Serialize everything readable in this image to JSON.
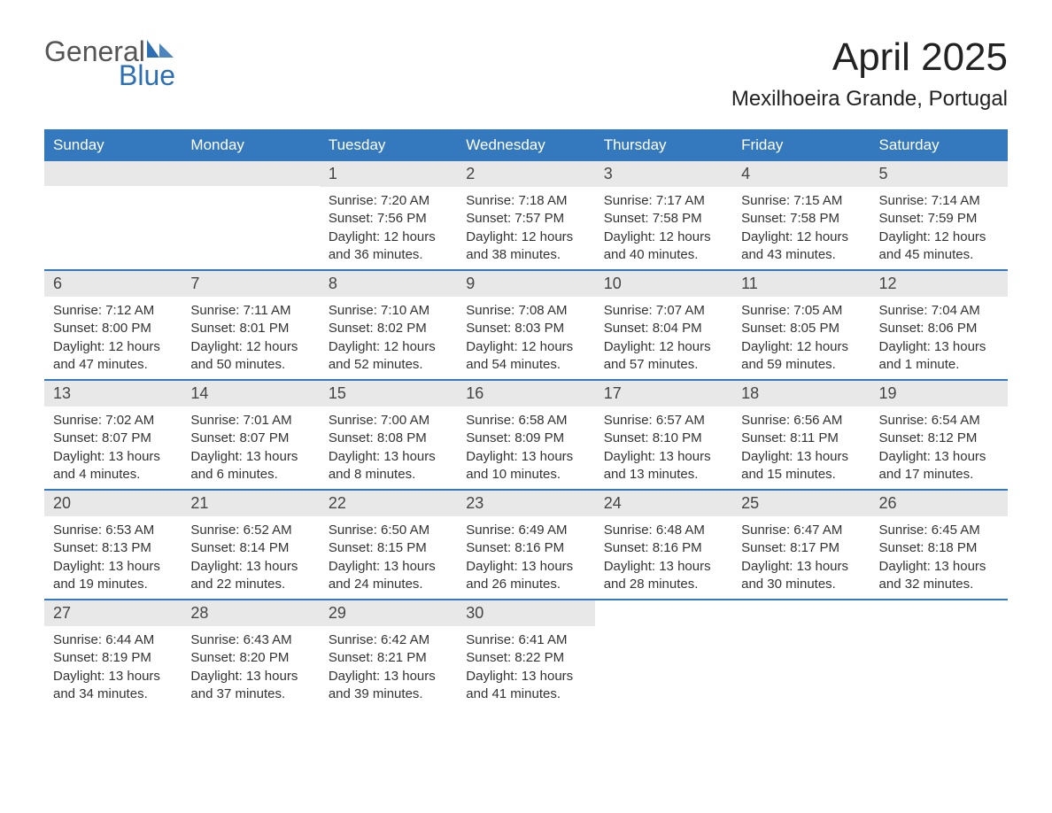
{
  "logo": {
    "text_general": "General",
    "text_blue": "Blue",
    "icon_color": "#2d6fb3"
  },
  "header": {
    "month_title": "April 2025",
    "location": "Mexilhoeira Grande, Portugal"
  },
  "colors": {
    "header_bg": "#3478bd",
    "header_text": "#ffffff",
    "day_number_bg": "#e8e8e8",
    "border_color": "#3478bd",
    "text_color": "#333333",
    "logo_gray": "#555555",
    "logo_blue": "#2d6fb3"
  },
  "typography": {
    "month_title_fontsize": 44,
    "location_fontsize": 24,
    "weekday_fontsize": 17,
    "daynum_fontsize": 18,
    "content_fontsize": 15
  },
  "weekdays": [
    "Sunday",
    "Monday",
    "Tuesday",
    "Wednesday",
    "Thursday",
    "Friday",
    "Saturday"
  ],
  "weeks": [
    [
      {
        "empty": true
      },
      {
        "empty": true
      },
      {
        "day": "1",
        "sunrise": "Sunrise: 7:20 AM",
        "sunset": "Sunset: 7:56 PM",
        "daylight1": "Daylight: 12 hours",
        "daylight2": "and 36 minutes."
      },
      {
        "day": "2",
        "sunrise": "Sunrise: 7:18 AM",
        "sunset": "Sunset: 7:57 PM",
        "daylight1": "Daylight: 12 hours",
        "daylight2": "and 38 minutes."
      },
      {
        "day": "3",
        "sunrise": "Sunrise: 7:17 AM",
        "sunset": "Sunset: 7:58 PM",
        "daylight1": "Daylight: 12 hours",
        "daylight2": "and 40 minutes."
      },
      {
        "day": "4",
        "sunrise": "Sunrise: 7:15 AM",
        "sunset": "Sunset: 7:58 PM",
        "daylight1": "Daylight: 12 hours",
        "daylight2": "and 43 minutes."
      },
      {
        "day": "5",
        "sunrise": "Sunrise: 7:14 AM",
        "sunset": "Sunset: 7:59 PM",
        "daylight1": "Daylight: 12 hours",
        "daylight2": "and 45 minutes."
      }
    ],
    [
      {
        "day": "6",
        "sunrise": "Sunrise: 7:12 AM",
        "sunset": "Sunset: 8:00 PM",
        "daylight1": "Daylight: 12 hours",
        "daylight2": "and 47 minutes."
      },
      {
        "day": "7",
        "sunrise": "Sunrise: 7:11 AM",
        "sunset": "Sunset: 8:01 PM",
        "daylight1": "Daylight: 12 hours",
        "daylight2": "and 50 minutes."
      },
      {
        "day": "8",
        "sunrise": "Sunrise: 7:10 AM",
        "sunset": "Sunset: 8:02 PM",
        "daylight1": "Daylight: 12 hours",
        "daylight2": "and 52 minutes."
      },
      {
        "day": "9",
        "sunrise": "Sunrise: 7:08 AM",
        "sunset": "Sunset: 8:03 PM",
        "daylight1": "Daylight: 12 hours",
        "daylight2": "and 54 minutes."
      },
      {
        "day": "10",
        "sunrise": "Sunrise: 7:07 AM",
        "sunset": "Sunset: 8:04 PM",
        "daylight1": "Daylight: 12 hours",
        "daylight2": "and 57 minutes."
      },
      {
        "day": "11",
        "sunrise": "Sunrise: 7:05 AM",
        "sunset": "Sunset: 8:05 PM",
        "daylight1": "Daylight: 12 hours",
        "daylight2": "and 59 minutes."
      },
      {
        "day": "12",
        "sunrise": "Sunrise: 7:04 AM",
        "sunset": "Sunset: 8:06 PM",
        "daylight1": "Daylight: 13 hours",
        "daylight2": "and 1 minute."
      }
    ],
    [
      {
        "day": "13",
        "sunrise": "Sunrise: 7:02 AM",
        "sunset": "Sunset: 8:07 PM",
        "daylight1": "Daylight: 13 hours",
        "daylight2": "and 4 minutes."
      },
      {
        "day": "14",
        "sunrise": "Sunrise: 7:01 AM",
        "sunset": "Sunset: 8:07 PM",
        "daylight1": "Daylight: 13 hours",
        "daylight2": "and 6 minutes."
      },
      {
        "day": "15",
        "sunrise": "Sunrise: 7:00 AM",
        "sunset": "Sunset: 8:08 PM",
        "daylight1": "Daylight: 13 hours",
        "daylight2": "and 8 minutes."
      },
      {
        "day": "16",
        "sunrise": "Sunrise: 6:58 AM",
        "sunset": "Sunset: 8:09 PM",
        "daylight1": "Daylight: 13 hours",
        "daylight2": "and 10 minutes."
      },
      {
        "day": "17",
        "sunrise": "Sunrise: 6:57 AM",
        "sunset": "Sunset: 8:10 PM",
        "daylight1": "Daylight: 13 hours",
        "daylight2": "and 13 minutes."
      },
      {
        "day": "18",
        "sunrise": "Sunrise: 6:56 AM",
        "sunset": "Sunset: 8:11 PM",
        "daylight1": "Daylight: 13 hours",
        "daylight2": "and 15 minutes."
      },
      {
        "day": "19",
        "sunrise": "Sunrise: 6:54 AM",
        "sunset": "Sunset: 8:12 PM",
        "daylight1": "Daylight: 13 hours",
        "daylight2": "and 17 minutes."
      }
    ],
    [
      {
        "day": "20",
        "sunrise": "Sunrise: 6:53 AM",
        "sunset": "Sunset: 8:13 PM",
        "daylight1": "Daylight: 13 hours",
        "daylight2": "and 19 minutes."
      },
      {
        "day": "21",
        "sunrise": "Sunrise: 6:52 AM",
        "sunset": "Sunset: 8:14 PM",
        "daylight1": "Daylight: 13 hours",
        "daylight2": "and 22 minutes."
      },
      {
        "day": "22",
        "sunrise": "Sunrise: 6:50 AM",
        "sunset": "Sunset: 8:15 PM",
        "daylight1": "Daylight: 13 hours",
        "daylight2": "and 24 minutes."
      },
      {
        "day": "23",
        "sunrise": "Sunrise: 6:49 AM",
        "sunset": "Sunset: 8:16 PM",
        "daylight1": "Daylight: 13 hours",
        "daylight2": "and 26 minutes."
      },
      {
        "day": "24",
        "sunrise": "Sunrise: 6:48 AM",
        "sunset": "Sunset: 8:16 PM",
        "daylight1": "Daylight: 13 hours",
        "daylight2": "and 28 minutes."
      },
      {
        "day": "25",
        "sunrise": "Sunrise: 6:47 AM",
        "sunset": "Sunset: 8:17 PM",
        "daylight1": "Daylight: 13 hours",
        "daylight2": "and 30 minutes."
      },
      {
        "day": "26",
        "sunrise": "Sunrise: 6:45 AM",
        "sunset": "Sunset: 8:18 PM",
        "daylight1": "Daylight: 13 hours",
        "daylight2": "and 32 minutes."
      }
    ],
    [
      {
        "day": "27",
        "sunrise": "Sunrise: 6:44 AM",
        "sunset": "Sunset: 8:19 PM",
        "daylight1": "Daylight: 13 hours",
        "daylight2": "and 34 minutes."
      },
      {
        "day": "28",
        "sunrise": "Sunrise: 6:43 AM",
        "sunset": "Sunset: 8:20 PM",
        "daylight1": "Daylight: 13 hours",
        "daylight2": "and 37 minutes."
      },
      {
        "day": "29",
        "sunrise": "Sunrise: 6:42 AM",
        "sunset": "Sunset: 8:21 PM",
        "daylight1": "Daylight: 13 hours",
        "daylight2": "and 39 minutes."
      },
      {
        "day": "30",
        "sunrise": "Sunrise: 6:41 AM",
        "sunset": "Sunset: 8:22 PM",
        "daylight1": "Daylight: 13 hours",
        "daylight2": "and 41 minutes."
      },
      {
        "empty": true,
        "trailing": true
      },
      {
        "empty": true,
        "trailing": true
      },
      {
        "empty": true,
        "trailing": true
      }
    ]
  ]
}
